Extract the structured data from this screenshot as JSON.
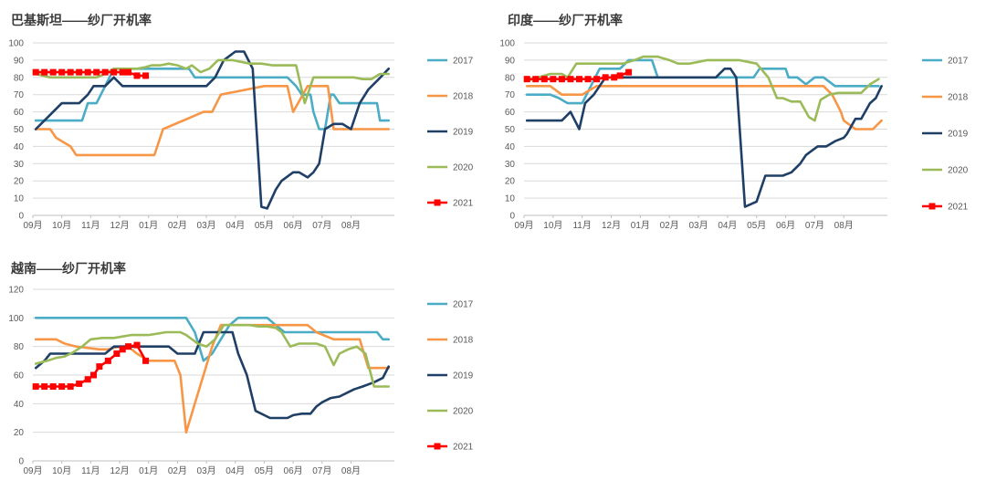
{
  "colors": {
    "2017": "#4BACC6",
    "2018": "#F79646",
    "2019": "#1F3F66",
    "2020": "#9BBB59",
    "2021": "#FF0000"
  },
  "chart_data": [
    {
      "type": "line",
      "title": "巴基斯坦——纱厂开机率",
      "xlabel": "",
      "ylabel": "",
      "ylim": [
        0,
        100
      ],
      "yticks": [
        "0",
        "10",
        "20",
        "30",
        "40",
        "50",
        "60",
        "70",
        "80",
        "90",
        "100"
      ],
      "xticks": [
        "09月",
        "10月",
        "11月",
        "12月",
        "01月",
        "02月",
        "03月",
        "04月",
        "05月",
        "06月",
        "07月",
        "08月"
      ],
      "x_range": [
        0,
        12.5
      ],
      "grid": true,
      "legend": "right",
      "series": [
        {
          "name": "2017",
          "x": [
            0.1,
            1.7,
            1.9,
            2.2,
            2.5,
            2.8,
            5.4,
            5.6,
            8.8,
            9.1,
            9.3,
            9.6,
            9.7,
            9.9,
            10.1,
            10.3,
            10.4,
            10.6,
            11.2,
            11.9,
            12.0,
            12.3
          ],
          "y": [
            55,
            55,
            65,
            65,
            75,
            85,
            85,
            80,
            80,
            75,
            70,
            70,
            60,
            50,
            50,
            70,
            70,
            65,
            65,
            65,
            55,
            55
          ]
        },
        {
          "name": "2018",
          "x": [
            0.1,
            0.6,
            0.8,
            1.3,
            1.5,
            2.4,
            4.0,
            4.2,
            4.5,
            5.9,
            6.2,
            6.5,
            8.0,
            8.5,
            8.8,
            9.0,
            9.5,
            10.2,
            10.4,
            10.6,
            12.3
          ],
          "y": [
            50,
            50,
            45,
            40,
            35,
            35,
            35,
            35,
            50,
            60,
            60,
            70,
            75,
            75,
            75,
            60,
            75,
            75,
            50,
            50,
            50
          ]
        },
        {
          "name": "2019",
          "x": [
            0.1,
            0.7,
            1.0,
            1.6,
            1.9,
            2.1,
            2.5,
            2.8,
            3.1,
            6.0,
            6.3,
            6.6,
            7.0,
            7.3,
            7.6,
            7.9,
            8.1,
            8.4,
            8.6,
            9.0,
            9.2,
            9.5,
            9.7,
            9.9,
            10.1,
            10.4,
            10.7,
            11.0,
            11.3,
            11.6,
            11.9,
            12.3
          ],
          "y": [
            50,
            60,
            65,
            65,
            70,
            75,
            75,
            80,
            75,
            75,
            80,
            90,
            95,
            95,
            85,
            5,
            4,
            15,
            20,
            25,
            25,
            22,
            25,
            30,
            50,
            53,
            53,
            50,
            65,
            73,
            78,
            85
          ]
        },
        {
          "name": "2020",
          "x": [
            0.1,
            0.6,
            1.0,
            1.3,
            2.2,
            2.5,
            2.8,
            3.1,
            3.6,
            3.9,
            4.1,
            4.4,
            4.7,
            5.0,
            5.3,
            5.5,
            5.8,
            6.1,
            6.4,
            6.6,
            6.9,
            7.2,
            7.5,
            7.9,
            8.3,
            8.7,
            9.1,
            9.4,
            9.7,
            11.1,
            11.4,
            11.7,
            12.0,
            12.3
          ],
          "y": [
            82,
            80,
            80,
            80,
            80,
            82,
            85,
            85,
            85,
            86,
            87,
            87,
            88,
            87,
            85,
            87,
            83,
            85,
            90,
            90,
            90,
            89,
            88,
            88,
            87,
            87,
            87,
            65,
            80,
            80,
            79,
            79,
            82,
            82
          ]
        },
        {
          "name": "2021",
          "x": [
            0.1,
            0.4,
            0.7,
            1.0,
            1.3,
            1.6,
            1.9,
            2.2,
            2.5,
            2.8,
            3.1,
            3.3,
            3.6,
            3.9
          ],
          "y": [
            83,
            83,
            83,
            83,
            83,
            83,
            83,
            83,
            83,
            83,
            83,
            83,
            81,
            81
          ]
        }
      ]
    },
    {
      "type": "line",
      "title": "印度——纱厂开机率",
      "xlabel": "",
      "ylabel": "",
      "ylim": [
        0,
        100
      ],
      "yticks": [
        "0",
        "10",
        "20",
        "30",
        "40",
        "50",
        "60",
        "70",
        "80",
        "90",
        "100"
      ],
      "xticks": [
        "09月",
        "10月",
        "11月",
        "12月",
        "01月",
        "02月",
        "03月",
        "04月",
        "05月",
        "06月",
        "07月",
        "08月"
      ],
      "x_range": [
        0,
        12.5
      ],
      "grid": true,
      "legend": "right",
      "series": [
        {
          "name": "2017",
          "x": [
            0.1,
            0.4,
            0.9,
            1.2,
            1.5,
            1.8,
            2.0,
            2.3,
            2.6,
            3.3,
            3.6,
            4.4,
            4.6,
            5.1,
            7.6,
            7.9,
            8.1,
            8.6,
            9.0,
            9.1,
            9.4,
            9.7,
            10.0,
            10.3,
            10.7,
            11.2,
            11.8,
            12.2
          ],
          "y": [
            70,
            70,
            70,
            68,
            65,
            65,
            65,
            75,
            85,
            85,
            90,
            90,
            80,
            80,
            80,
            80,
            85,
            85,
            85,
            80,
            80,
            76,
            80,
            80,
            75,
            75,
            75,
            75
          ]
        },
        {
          "name": "2018",
          "x": [
            0.1,
            0.6,
            0.9,
            1.3,
            1.9,
            2.0,
            2.2,
            2.5,
            9.7,
            9.9,
            10.3,
            10.6,
            10.9,
            11.0,
            11.4,
            11.6,
            12.0,
            12.3
          ],
          "y": [
            75,
            75,
            75,
            70,
            70,
            70,
            72,
            75,
            75,
            75,
            75,
            70,
            60,
            55,
            50,
            50,
            50,
            55
          ]
        },
        {
          "name": "2019",
          "x": [
            0.1,
            1.3,
            1.6,
            1.9,
            2.1,
            2.4,
            2.8,
            3.1,
            3.4,
            6.3,
            6.6,
            6.9,
            7.1,
            7.3,
            7.6,
            8.0,
            8.3,
            8.7,
            8.9,
            9.2,
            9.5,
            9.7,
            10.1,
            10.4,
            10.7,
            11.0,
            11.1,
            11.4,
            11.6,
            11.9,
            12.1,
            12.3
          ],
          "y": [
            55,
            55,
            60,
            50,
            65,
            70,
            80,
            80,
            80,
            80,
            80,
            85,
            85,
            80,
            5,
            8,
            23,
            23,
            23,
            25,
            30,
            35,
            40,
            40,
            43,
            45,
            47,
            56,
            56,
            65,
            68,
            75
          ]
        },
        {
          "name": "2020",
          "x": [
            0.1,
            0.5,
            0.9,
            1.3,
            1.5,
            1.8,
            2.0,
            2.2,
            2.5,
            2.8,
            3.1,
            3.4,
            3.8,
            4.1,
            4.4,
            4.6,
            5.0,
            5.3,
            5.7,
            6.0,
            6.3,
            6.6,
            7.1,
            7.4,
            7.7,
            8.0,
            8.4,
            8.7,
            8.9,
            9.2,
            9.5,
            9.8,
            10.0,
            10.2,
            10.5,
            10.8,
            11.2,
            11.6,
            11.9,
            12.2
          ],
          "y": [
            78,
            80,
            82,
            82,
            80,
            88,
            88,
            88,
            88,
            88,
            88,
            88,
            90,
            92,
            92,
            92,
            90,
            88,
            88,
            89,
            90,
            90,
            90,
            90,
            89,
            88,
            80,
            68,
            68,
            66,
            66,
            57,
            55,
            67,
            70,
            71,
            71,
            71,
            76,
            79
          ]
        },
        {
          "name": "2021",
          "x": [
            0.1,
            0.4,
            0.7,
            1.0,
            1.3,
            1.6,
            1.9,
            2.2,
            2.5,
            2.8,
            3.1,
            3.3,
            3.6
          ],
          "y": [
            79,
            79,
            79,
            79,
            79,
            79,
            79,
            79,
            79,
            80,
            80,
            81,
            83
          ]
        }
      ]
    },
    {
      "type": "line",
      "title": "越南——纱厂开机率",
      "xlabel": "",
      "ylabel": "",
      "ylim": [
        0,
        120
      ],
      "yticks": [
        "0",
        "20",
        "40",
        "60",
        "80",
        "100",
        "120"
      ],
      "xticks": [
        "09月",
        "10月",
        "11月",
        "12月",
        "01月",
        "02月",
        "03月",
        "04月",
        "05月",
        "06月",
        "07月",
        "08月"
      ],
      "x_range": [
        0,
        12.5
      ],
      "grid": true,
      "legend": "right",
      "series": [
        {
          "name": "2017",
          "x": [
            0.1,
            5.0,
            5.3,
            5.6,
            5.9,
            6.2,
            6.5,
            6.8,
            7.1,
            7.8,
            8.1,
            8.4,
            8.7,
            9.0,
            9.3,
            11.9,
            12.1,
            12.3
          ],
          "y": [
            100,
            100,
            100,
            90,
            70,
            75,
            85,
            95,
            100,
            100,
            100,
            95,
            90,
            90,
            90,
            90,
            85,
            85
          ]
        },
        {
          "name": "2018",
          "x": [
            0.1,
            0.8,
            1.1,
            1.5,
            2.3,
            2.6,
            3.0,
            3.3,
            3.6,
            4.0,
            4.2,
            4.6,
            4.9,
            5.1,
            5.3,
            5.6,
            5.9,
            6.2,
            6.5,
            6.9,
            7.2,
            7.6,
            7.9,
            8.4,
            9.2,
            9.5,
            9.8,
            10.4,
            11.3,
            11.6,
            12.0,
            12.3
          ],
          "y": [
            85,
            85,
            82,
            80,
            78,
            78,
            80,
            80,
            75,
            70,
            70,
            70,
            70,
            60,
            20,
            40,
            60,
            80,
            95,
            95,
            95,
            95,
            95,
            95,
            95,
            95,
            90,
            85,
            85,
            65,
            65,
            65
          ]
        },
        {
          "name": "2019",
          "x": [
            0.1,
            0.4,
            0.6,
            1.3,
            2.5,
            2.8,
            4.4,
            4.7,
            5.0,
            5.3,
            5.6,
            5.9,
            6.3,
            6.6,
            6.9,
            7.1,
            7.4,
            7.7,
            8.2,
            8.5,
            8.8,
            9.0,
            9.3,
            9.6,
            9.8,
            10.0,
            10.3,
            10.6,
            10.9,
            11.1,
            11.4,
            11.8,
            12.1,
            12.3
          ],
          "y": [
            65,
            70,
            75,
            75,
            75,
            80,
            80,
            80,
            75,
            75,
            75,
            90,
            90,
            90,
            90,
            75,
            60,
            35,
            30,
            30,
            30,
            32,
            33,
            33,
            38,
            41,
            44,
            45,
            48,
            50,
            52,
            55,
            58,
            66
          ]
        },
        {
          "name": "2020",
          "x": [
            0.1,
            0.5,
            0.8,
            1.1,
            1.4,
            1.7,
            2.0,
            2.4,
            2.8,
            3.1,
            3.4,
            3.7,
            4.0,
            4.3,
            4.6,
            4.9,
            5.1,
            5.3,
            5.7,
            6.0,
            6.3,
            6.6,
            6.9,
            7.2,
            7.5,
            7.8,
            8.1,
            8.4,
            8.6,
            8.9,
            9.2,
            9.5,
            9.8,
            10.1,
            10.4,
            10.6,
            10.9,
            11.2,
            11.5,
            11.8,
            12.3
          ],
          "y": [
            68,
            70,
            72,
            73,
            76,
            80,
            85,
            86,
            86,
            87,
            88,
            88,
            88,
            89,
            90,
            90,
            90,
            88,
            82,
            80,
            85,
            95,
            95,
            95,
            95,
            94,
            94,
            93,
            90,
            80,
            82,
            82,
            82,
            80,
            67,
            75,
            78,
            80,
            75,
            52,
            52
          ]
        },
        {
          "name": "2021",
          "x": [
            0.1,
            0.4,
            0.7,
            1.0,
            1.3,
            1.6,
            1.9,
            2.1,
            2.3,
            2.6,
            2.9,
            3.1,
            3.3,
            3.6,
            3.9
          ],
          "y": [
            52,
            52,
            52,
            52,
            52,
            54,
            57,
            60,
            66,
            70,
            75,
            78,
            80,
            81,
            70
          ]
        }
      ]
    }
  ]
}
